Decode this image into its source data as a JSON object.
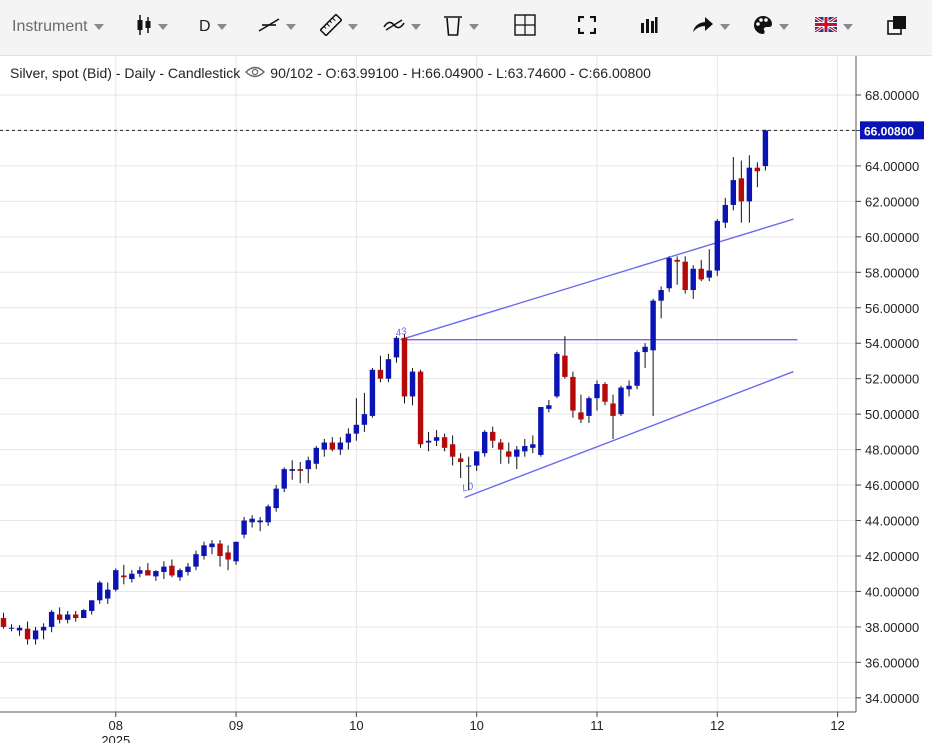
{
  "toolbar": {
    "instrument_label": "Instrument",
    "timeframe_label": "D",
    "icons": [
      "candlestick-icon",
      "trendline-icon",
      "ruler-icon",
      "indicator-icon",
      "trash-icon",
      "layout-icon",
      "fullscreen-icon",
      "bar-chart-icon",
      "share-icon",
      "palette-icon",
      "language-flag-icon",
      "popout-icon"
    ]
  },
  "chart_info": {
    "title": "Silver, spot (Bid) - Daily - Candlestick",
    "stats": "90/102 - O:63.99100 - H:66.04900 - L:63.74600 - C:66.00800"
  },
  "price_label": "66.00800",
  "annotations": {
    "high_label": "43",
    "low_label": "L0"
  },
  "chart_data": {
    "type": "candlestick",
    "title": "Silver, spot (Bid) - Daily - Candlestick",
    "ylim": [
      33.2,
      70.2
    ],
    "y_ticks": [
      "34.00000",
      "36.00000",
      "38.00000",
      "40.00000",
      "42.00000",
      "44.00000",
      "46.00000",
      "48.00000",
      "50.00000",
      "52.00000",
      "54.00000",
      "56.00000",
      "58.00000",
      "60.00000",
      "62.00000",
      "64.00000",
      "66.00000",
      "68.00000"
    ],
    "x_ticks": [
      {
        "label": "08",
        "sub": "2025",
        "index": 14
      },
      {
        "label": "09",
        "sub": "",
        "index": 29
      },
      {
        "label": "10",
        "sub": "",
        "index": 44
      },
      {
        "label": "10",
        "sub": "",
        "index": 59
      },
      {
        "label": "11",
        "sub": "",
        "index": 74
      },
      {
        "label": "12",
        "sub": "",
        "index": 89
      },
      {
        "label": "12",
        "sub": "",
        "index": 104
      }
    ],
    "last_close": 66.008,
    "colors": {
      "up": "#0a14b4",
      "down": "#b40a0a",
      "channel": "#6a6af0",
      "grid": "#e6e6e6",
      "price_label_bg": "#0a14b4"
    },
    "candles": [
      {
        "o": 38.5,
        "h": 38.8,
        "l": 37.9,
        "c": 38.0
      },
      {
        "o": 37.95,
        "h": 38.15,
        "l": 37.75,
        "c": 37.95
      },
      {
        "o": 37.8,
        "h": 38.1,
        "l": 37.5,
        "c": 37.95
      },
      {
        "o": 37.9,
        "h": 38.3,
        "l": 37.0,
        "c": 37.3
      },
      {
        "o": 37.3,
        "h": 38.0,
        "l": 37.0,
        "c": 37.8
      },
      {
        "o": 37.8,
        "h": 38.2,
        "l": 37.3,
        "c": 38.0
      },
      {
        "o": 38.0,
        "h": 38.95,
        "l": 37.7,
        "c": 38.85
      },
      {
        "o": 38.7,
        "h": 39.1,
        "l": 38.2,
        "c": 38.4
      },
      {
        "o": 38.4,
        "h": 38.9,
        "l": 38.2,
        "c": 38.7
      },
      {
        "o": 38.7,
        "h": 38.9,
        "l": 38.3,
        "c": 38.5
      },
      {
        "o": 38.5,
        "h": 39.0,
        "l": 38.5,
        "c": 38.95
      },
      {
        "o": 38.9,
        "h": 39.5,
        "l": 38.7,
        "c": 39.5
      },
      {
        "o": 39.5,
        "h": 40.6,
        "l": 39.3,
        "c": 40.5
      },
      {
        "o": 39.6,
        "h": 40.5,
        "l": 39.3,
        "c": 40.1
      },
      {
        "o": 40.1,
        "h": 41.3,
        "l": 40.0,
        "c": 41.2
      },
      {
        "o": 40.9,
        "h": 41.5,
        "l": 40.4,
        "c": 40.8
      },
      {
        "o": 40.7,
        "h": 41.2,
        "l": 40.5,
        "c": 41.0
      },
      {
        "o": 41.0,
        "h": 41.4,
        "l": 40.8,
        "c": 41.2
      },
      {
        "o": 41.2,
        "h": 41.6,
        "l": 40.9,
        "c": 40.9
      },
      {
        "o": 40.85,
        "h": 41.2,
        "l": 40.6,
        "c": 41.15
      },
      {
        "o": 41.1,
        "h": 41.7,
        "l": 40.7,
        "c": 41.4
      },
      {
        "o": 41.45,
        "h": 41.8,
        "l": 40.8,
        "c": 40.9
      },
      {
        "o": 40.8,
        "h": 41.3,
        "l": 40.6,
        "c": 41.2
      },
      {
        "o": 41.1,
        "h": 41.6,
        "l": 40.9,
        "c": 41.4
      },
      {
        "o": 41.4,
        "h": 42.3,
        "l": 41.2,
        "c": 42.1
      },
      {
        "o": 42.0,
        "h": 42.8,
        "l": 41.8,
        "c": 42.6
      },
      {
        "o": 42.5,
        "h": 42.9,
        "l": 42.1,
        "c": 42.7
      },
      {
        "o": 42.7,
        "h": 42.9,
        "l": 41.4,
        "c": 42.0
      },
      {
        "o": 42.2,
        "h": 42.6,
        "l": 41.2,
        "c": 41.8
      },
      {
        "o": 41.7,
        "h": 42.8,
        "l": 41.5,
        "c": 42.8
      },
      {
        "o": 43.2,
        "h": 44.2,
        "l": 43.0,
        "c": 44.0
      },
      {
        "o": 43.9,
        "h": 44.3,
        "l": 43.6,
        "c": 44.1
      },
      {
        "o": 43.9,
        "h": 44.2,
        "l": 43.4,
        "c": 44.0
      },
      {
        "o": 43.9,
        "h": 44.9,
        "l": 43.7,
        "c": 44.8
      },
      {
        "o": 44.7,
        "h": 46.0,
        "l": 44.5,
        "c": 45.8
      },
      {
        "o": 45.8,
        "h": 47.0,
        "l": 45.6,
        "c": 46.9
      },
      {
        "o": 46.8,
        "h": 47.4,
        "l": 46.3,
        "c": 46.9
      },
      {
        "o": 46.9,
        "h": 47.3,
        "l": 46.1,
        "c": 46.8
      },
      {
        "o": 46.9,
        "h": 47.6,
        "l": 46.1,
        "c": 47.4
      },
      {
        "o": 47.2,
        "h": 48.2,
        "l": 46.9,
        "c": 48.1
      },
      {
        "o": 48.0,
        "h": 48.6,
        "l": 47.6,
        "c": 48.4
      },
      {
        "o": 48.4,
        "h": 48.7,
        "l": 47.9,
        "c": 48.0
      },
      {
        "o": 48.0,
        "h": 48.7,
        "l": 47.7,
        "c": 48.4
      },
      {
        "o": 48.4,
        "h": 49.2,
        "l": 48.0,
        "c": 48.9
      },
      {
        "o": 48.9,
        "h": 50.9,
        "l": 48.5,
        "c": 49.4
      },
      {
        "o": 49.4,
        "h": 51.2,
        "l": 49.0,
        "c": 50.0
      },
      {
        "o": 49.9,
        "h": 52.6,
        "l": 49.8,
        "c": 52.5
      },
      {
        "o": 52.5,
        "h": 53.3,
        "l": 51.8,
        "c": 52.0
      },
      {
        "o": 52.0,
        "h": 53.4,
        "l": 51.8,
        "c": 53.1
      },
      {
        "o": 53.2,
        "h": 54.4,
        "l": 52.9,
        "c": 54.3
      },
      {
        "o": 54.3,
        "h": 54.5,
        "l": 50.6,
        "c": 51.0
      },
      {
        "o": 51.0,
        "h": 52.6,
        "l": 50.5,
        "c": 52.4
      },
      {
        "o": 52.4,
        "h": 52.5,
        "l": 48.1,
        "c": 48.3
      },
      {
        "o": 48.4,
        "h": 49.0,
        "l": 47.9,
        "c": 48.5
      },
      {
        "o": 48.5,
        "h": 49.1,
        "l": 48.2,
        "c": 48.7
      },
      {
        "o": 48.7,
        "h": 48.9,
        "l": 47.9,
        "c": 48.1
      },
      {
        "o": 48.3,
        "h": 48.8,
        "l": 47.1,
        "c": 47.6
      },
      {
        "o": 47.5,
        "h": 47.8,
        "l": 46.4,
        "c": 47.3
      },
      {
        "o": 47.1,
        "h": 47.6,
        "l": 45.7,
        "c": 47.1
      },
      {
        "o": 47.1,
        "h": 47.9,
        "l": 46.8,
        "c": 47.9
      },
      {
        "o": 47.8,
        "h": 49.1,
        "l": 47.6,
        "c": 49.0
      },
      {
        "o": 49.0,
        "h": 49.3,
        "l": 48.1,
        "c": 48.5
      },
      {
        "o": 48.4,
        "h": 48.6,
        "l": 47.2,
        "c": 48.0
      },
      {
        "o": 47.9,
        "h": 48.4,
        "l": 47.2,
        "c": 47.6
      },
      {
        "o": 47.6,
        "h": 48.2,
        "l": 46.9,
        "c": 48.0
      },
      {
        "o": 47.9,
        "h": 48.6,
        "l": 47.6,
        "c": 48.2
      },
      {
        "o": 48.1,
        "h": 48.8,
        "l": 47.8,
        "c": 48.3
      },
      {
        "o": 47.7,
        "h": 50.4,
        "l": 47.6,
        "c": 50.4
      },
      {
        "o": 50.3,
        "h": 50.8,
        "l": 50.1,
        "c": 50.5
      },
      {
        "o": 51.0,
        "h": 53.5,
        "l": 50.9,
        "c": 53.4
      },
      {
        "o": 53.3,
        "h": 54.4,
        "l": 52.0,
        "c": 52.1
      },
      {
        "o": 52.1,
        "h": 52.4,
        "l": 49.8,
        "c": 50.2
      },
      {
        "o": 50.1,
        "h": 51.1,
        "l": 49.5,
        "c": 49.7
      },
      {
        "o": 49.9,
        "h": 51.0,
        "l": 49.5,
        "c": 50.9
      },
      {
        "o": 50.9,
        "h": 51.9,
        "l": 50.2,
        "c": 51.7
      },
      {
        "o": 51.7,
        "h": 51.8,
        "l": 50.5,
        "c": 50.7
      },
      {
        "o": 50.6,
        "h": 51.1,
        "l": 48.6,
        "c": 49.9
      },
      {
        "o": 50.0,
        "h": 51.6,
        "l": 49.9,
        "c": 51.5
      },
      {
        "o": 51.4,
        "h": 51.9,
        "l": 51.0,
        "c": 51.6
      },
      {
        "o": 51.6,
        "h": 53.6,
        "l": 51.4,
        "c": 53.5
      },
      {
        "o": 53.5,
        "h": 54.0,
        "l": 52.6,
        "c": 53.8
      },
      {
        "o": 53.6,
        "h": 56.5,
        "l": 49.9,
        "c": 56.4
      },
      {
        "o": 56.4,
        "h": 57.2,
        "l": 55.4,
        "c": 57.0
      },
      {
        "o": 57.1,
        "h": 58.9,
        "l": 56.9,
        "c": 58.8
      },
      {
        "o": 58.7,
        "h": 58.9,
        "l": 57.3,
        "c": 58.6
      },
      {
        "o": 58.6,
        "h": 58.9,
        "l": 56.8,
        "c": 57.0
      },
      {
        "o": 57.0,
        "h": 58.4,
        "l": 56.5,
        "c": 58.2
      },
      {
        "o": 58.2,
        "h": 58.7,
        "l": 57.5,
        "c": 57.6
      },
      {
        "o": 57.7,
        "h": 59.3,
        "l": 57.5,
        "c": 58.1
      },
      {
        "o": 58.1,
        "h": 61.0,
        "l": 57.8,
        "c": 60.9
      },
      {
        "o": 60.8,
        "h": 62.2,
        "l": 60.5,
        "c": 61.8
      },
      {
        "o": 61.8,
        "h": 64.5,
        "l": 61.5,
        "c": 63.2
      },
      {
        "o": 63.3,
        "h": 64.3,
        "l": 60.8,
        "c": 62.0
      },
      {
        "o": 62.0,
        "h": 64.6,
        "l": 60.8,
        "c": 63.9
      },
      {
        "o": 63.9,
        "h": 64.2,
        "l": 62.8,
        "c": 63.7
      },
      {
        "o": 63.991,
        "h": 66.049,
        "l": 63.746,
        "c": 66.008
      }
    ],
    "trend_lines": [
      {
        "name": "channel-upper-line",
        "x0": 49.5,
        "y0": 54.2,
        "x1": 98.5,
        "y1": 61.0
      },
      {
        "name": "horizontal-resistance-line",
        "x0": 49.5,
        "y0": 54.2,
        "x1": 99.0,
        "y1": 54.2
      },
      {
        "name": "channel-lower-line",
        "x0": 57.5,
        "y0": 45.3,
        "x1": 98.5,
        "y1": 52.4
      }
    ]
  }
}
